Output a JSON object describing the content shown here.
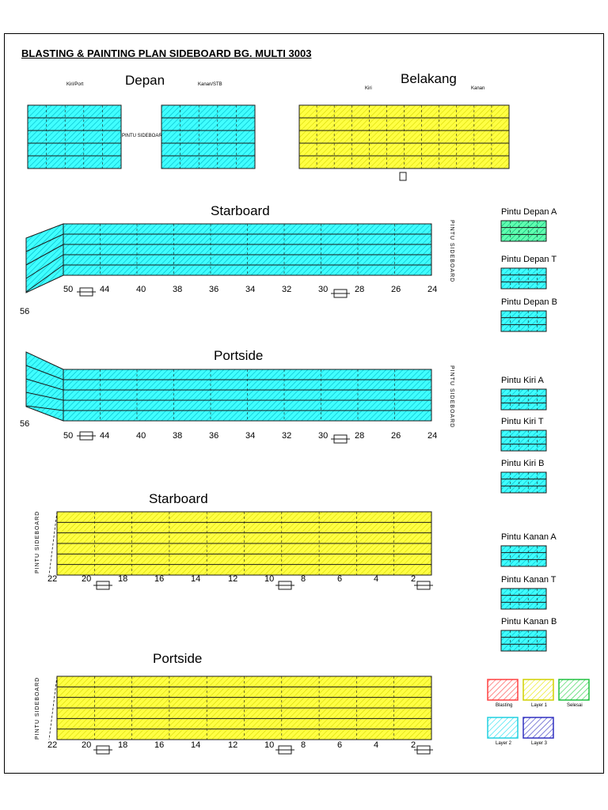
{
  "title": "BLASTING & PAINTING PLAN SIDEBOARD BG. MULTI 3003",
  "colors": {
    "cyan": "#40ffff",
    "yellow": "#ffff44",
    "green": "#40ff60",
    "red": "#ff4040",
    "blue": "#3030c0",
    "line": "#1a1a1a"
  },
  "depan": {
    "heading": "Depan",
    "left_label": "Kiri/Port",
    "right_label": "Kanan/STB",
    "door_label": "PINTU SIDEBOARD"
  },
  "belakang": {
    "heading": "Belakang",
    "left_label": "Kiri",
    "right_label": "Kanan"
  },
  "panels": [
    {
      "heading": "Starboard",
      "frames": [
        "50",
        "44",
        "40",
        "38",
        "36",
        "34",
        "32",
        "30",
        "28",
        "26",
        "24"
      ],
      "extra": "56",
      "side_label": "PINTU SIDEBOARD"
    },
    {
      "heading": "Portside",
      "frames": [
        "50",
        "44",
        "40",
        "38",
        "36",
        "34",
        "32",
        "30",
        "28",
        "26",
        "24"
      ],
      "extra": "56",
      "side_label": "PINTU SIDEBOARD"
    },
    {
      "heading": "Starboard",
      "frames": [
        "22",
        "20",
        "18",
        "16",
        "14",
        "12",
        "10",
        "8",
        "6",
        "4",
        "2"
      ],
      "side_label": "PINTU SIDEBOARD"
    },
    {
      "heading": "Portside",
      "frames": [
        "22",
        "20",
        "18",
        "16",
        "14",
        "12",
        "10",
        "8",
        "6",
        "4",
        "2"
      ],
      "side_label": "PINTU SIDEBOARD"
    }
  ],
  "doors": [
    {
      "label": "Pintu Depan A",
      "color": "green"
    },
    {
      "label": "Pintu Depan T",
      "color": "cyan"
    },
    {
      "label": "Pintu Depan B",
      "color": "cyan"
    },
    {
      "label": "Pintu Kiri A",
      "color": "cyan"
    },
    {
      "label": "Pintu Kiri T",
      "color": "cyan"
    },
    {
      "label": "Pintu Kiri B",
      "color": "cyan"
    },
    {
      "label": "Pintu Kanan A",
      "color": "cyan"
    },
    {
      "label": "Pintu Kanan T",
      "color": "cyan"
    },
    {
      "label": "Pintu Kanan B",
      "color": "cyan"
    }
  ],
  "legend": [
    {
      "label": "Blasting",
      "color": "red"
    },
    {
      "label": "Layer 1",
      "color": "yellow"
    },
    {
      "label": "Selesai",
      "color": "green"
    },
    {
      "label": "Layer 2",
      "color": "cyan"
    },
    {
      "label": "Layer 3",
      "color": "blue"
    }
  ]
}
